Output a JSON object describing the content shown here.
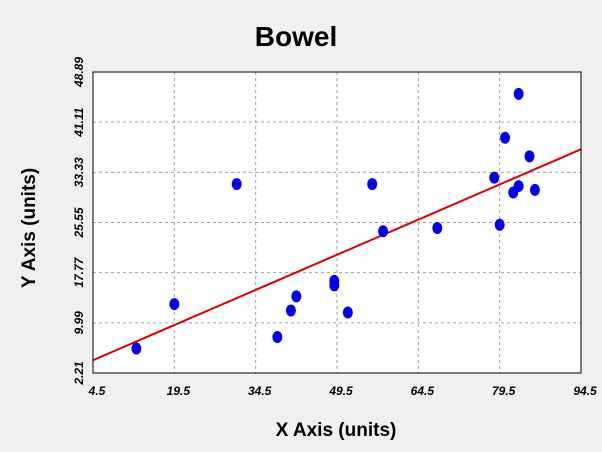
{
  "chart_data": {
    "type": "scatter",
    "title": "Bowel",
    "xlabel": "X Axis (units)",
    "ylabel": "Y Axis (units)",
    "xlim": [
      4.5,
      94.5
    ],
    "ylim": [
      2.21,
      48.89
    ],
    "x_ticks": [
      "4.5",
      "19.5",
      "34.5",
      "49.5",
      "64.5",
      "79.5",
      "94.5"
    ],
    "y_ticks": [
      "2.21",
      "9.99",
      "17.77",
      "25.55",
      "33.33",
      "41.11",
      "48.89"
    ],
    "grid": true,
    "points": {
      "color": "#0000ee",
      "x": [
        12.5,
        19.5,
        31.0,
        38.5,
        41.0,
        42.0,
        49.0,
        49.0,
        51.5,
        56.0,
        58.0,
        68.0,
        78.5,
        79.5,
        80.5,
        82.0,
        83.0,
        83.0,
        85.0,
        86.0
      ],
      "y": [
        6.0,
        12.9,
        31.5,
        7.8,
        11.9,
        14.1,
        16.5,
        15.8,
        11.6,
        31.5,
        24.2,
        24.7,
        32.5,
        25.2,
        38.7,
        30.2,
        45.5,
        31.2,
        35.8,
        30.6
      ]
    },
    "fit_line": {
      "color": "#dd0000",
      "x": [
        4.5,
        94.5
      ],
      "y": [
        4.2,
        36.9
      ]
    }
  },
  "colors": {
    "background": "#f0f0f0",
    "plot_background": "#ffffff",
    "grid": "#a0a0a0"
  }
}
